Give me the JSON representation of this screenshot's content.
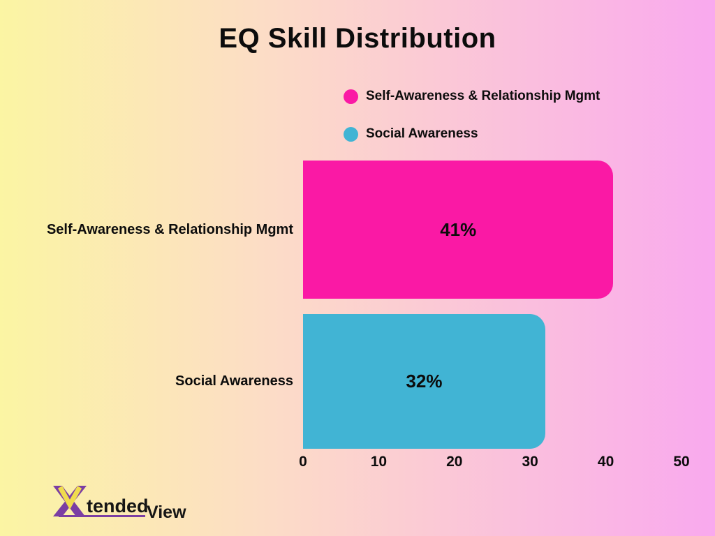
{
  "chart_data": {
    "type": "bar",
    "orientation": "horizontal",
    "title": "EQ Skill Distribution",
    "categories": [
      "Self-Awareness & Relationship Mgmt",
      "Social Awareness"
    ],
    "values": [
      41,
      32
    ],
    "value_labels": [
      "41%",
      "32%"
    ],
    "bar_colors": [
      "#fa19a5",
      "#41b4d4"
    ],
    "xlim": [
      0,
      50
    ],
    "x_ticks": [
      "0",
      "10",
      "20",
      "30",
      "40",
      "50"
    ],
    "grid": false,
    "legend_position": "top-center",
    "legend": [
      {
        "label": "Self-Awareness & Relationship Mgmt",
        "color": "#fa19a5"
      },
      {
        "label": "Social Awareness",
        "color": "#41b4d4"
      }
    ]
  },
  "branding": {
    "logo_x": "X",
    "logo_tended": "tended",
    "logo_view": "View"
  },
  "colors": {
    "background_left": "#fbf5a3",
    "background_mid": "#fcdcc7",
    "background_right": "#f9a9ee",
    "pink_series": "#fa19a5",
    "blue_series": "#41b4d4",
    "logo_purple": "#7b3ea3",
    "logo_yellow": "#f0dc4e",
    "text": "#0c0c0c"
  }
}
